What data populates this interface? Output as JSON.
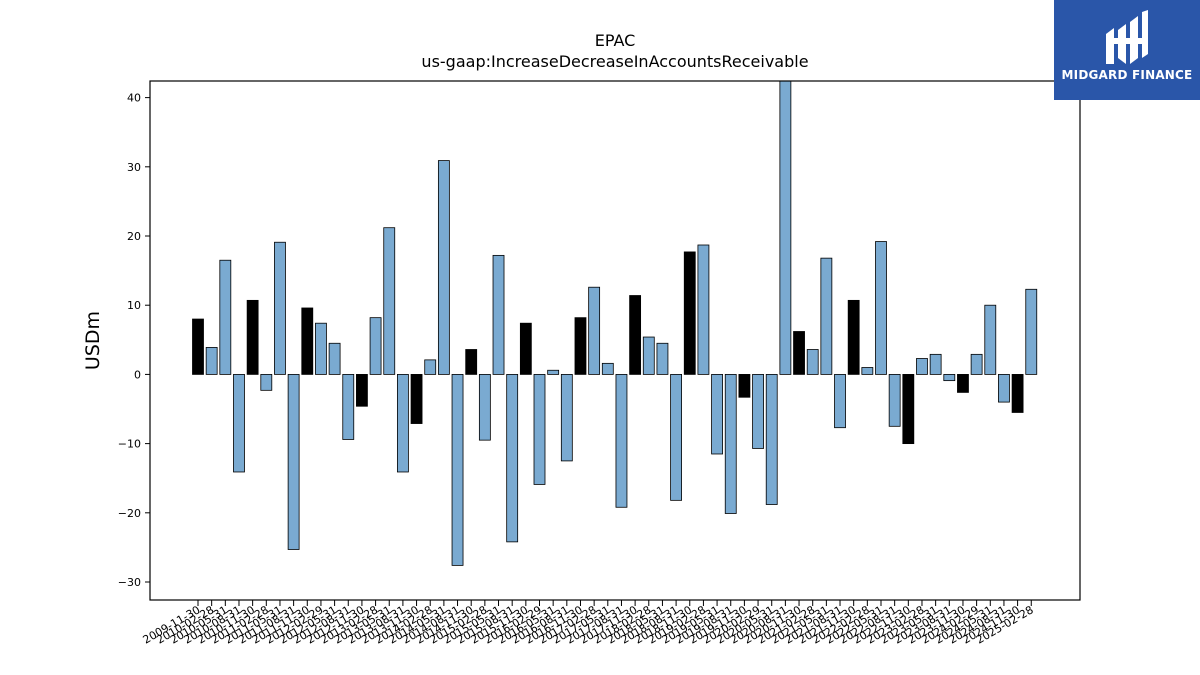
{
  "logo": {
    "text": "MIDGARD FINANCE",
    "icon": "midgard-logo-icon"
  },
  "chart_data": {
    "type": "bar",
    "title": "EPAC",
    "subtitle": "us-gaap:IncreaseDecreaseInAccountsReceivable",
    "ylabel": "USDm",
    "xlabel": "",
    "ylim": [
      -32.6,
      42.4
    ],
    "yticks": [
      -30,
      -20,
      -10,
      0,
      10,
      20,
      30,
      40
    ],
    "ytick_labels": [
      "−30",
      "−20",
      "−10",
      "0",
      "10",
      "20",
      "30",
      "40"
    ],
    "grid": false,
    "categories": [
      "2009-11-30",
      "2010-02-28",
      "2010-05-31",
      "2010-08-31",
      "2010-11-30",
      "2011-02-28",
      "2011-05-31",
      "2011-08-31",
      "2011-11-30",
      "2012-02-29",
      "2012-05-31",
      "2012-08-31",
      "2012-11-30",
      "2013-02-28",
      "2013-05-31",
      "2013-08-31",
      "2013-11-30",
      "2014-02-28",
      "2014-05-31",
      "2014-08-31",
      "2014-11-30",
      "2015-02-28",
      "2015-05-31",
      "2015-08-31",
      "2015-11-30",
      "2016-02-29",
      "2016-05-31",
      "2016-08-31",
      "2016-11-30",
      "2017-02-28",
      "2017-05-31",
      "2017-08-31",
      "2017-11-30",
      "2018-02-28",
      "2018-05-31",
      "2018-08-31",
      "2018-11-30",
      "2019-02-28",
      "2019-05-31",
      "2019-08-31",
      "2019-11-30",
      "2020-02-29",
      "2020-05-31",
      "2020-08-31",
      "2020-11-30",
      "2021-02-28",
      "2021-05-31",
      "2021-08-31",
      "2021-11-30",
      "2022-02-28",
      "2022-05-31",
      "2022-08-31",
      "2022-11-30",
      "2023-02-28",
      "2023-05-31",
      "2023-08-31",
      "2023-11-30",
      "2024-02-29",
      "2024-05-31",
      "2024-08-31",
      "2024-11-30",
      "2025-02-28"
    ],
    "values": [
      8.0,
      3.9,
      16.5,
      -14.1,
      10.7,
      -2.3,
      19.1,
      -25.3,
      9.6,
      7.4,
      4.5,
      -9.4,
      -4.6,
      8.2,
      21.2,
      -14.1,
      -7.1,
      2.1,
      30.9,
      -27.6,
      3.6,
      -9.5,
      17.2,
      -24.2,
      7.4,
      -15.9,
      0.6,
      -12.5,
      8.2,
      12.6,
      1.6,
      -19.2,
      11.4,
      5.4,
      4.5,
      -18.2,
      17.7,
      18.7,
      -11.5,
      -20.1,
      -3.3,
      -10.7,
      -18.8,
      42.4,
      6.2,
      3.6,
      16.8,
      -7.7,
      10.7,
      1.0,
      19.2,
      -7.5,
      -10.0,
      2.3,
      2.9,
      -0.9,
      -2.6,
      2.9,
      10.0,
      -4.0,
      -5.5,
      12.3
    ],
    "highlight_color": "#000000",
    "bar_color": "#7aaad1",
    "edge_color": "#000000",
    "highlight_indices": [
      0,
      4,
      8,
      12,
      16,
      20,
      24,
      28,
      32,
      36,
      40,
      44,
      48,
      52,
      56,
      60
    ]
  }
}
